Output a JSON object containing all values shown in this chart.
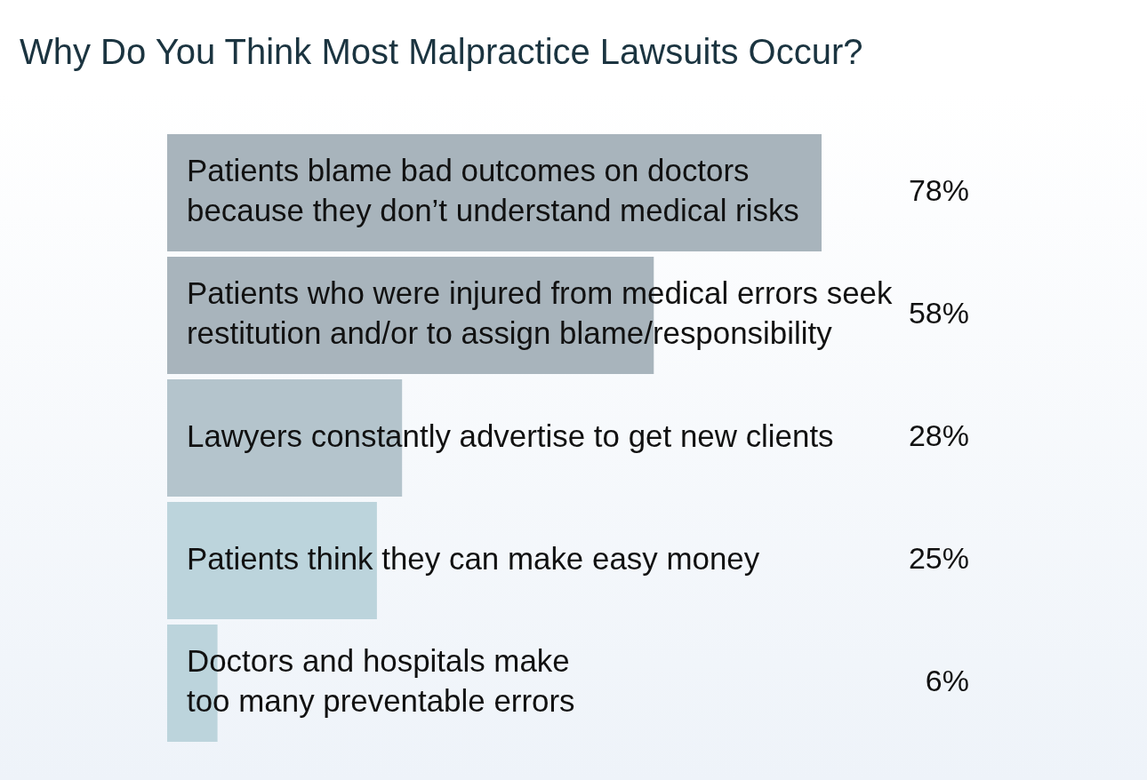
{
  "chart_data": {
    "type": "bar",
    "orientation": "horizontal",
    "title": "Why Do You Think Most Malpractice Lawsuits Occur?",
    "categories": [
      "Patients blame bad outcomes on doctors\nbecause they don’t understand medical risks",
      "Patients who were injured from medical errors seek\nrestitution and/or to assign blame/responsibility",
      "Lawyers constantly advertise to get new clients",
      "Patients think they can make easy money",
      "Doctors and hospitals make\ntoo many preventable errors"
    ],
    "values": [
      78,
      58,
      28,
      25,
      6
    ],
    "colors": [
      "#a8b4bc",
      "#a8b4bc",
      "#b4c4cc",
      "#bcd4dc",
      "#bcd4dc"
    ],
    "value_labels": [
      "78%",
      "58%",
      "28%",
      "25%",
      "6%"
    ]
  }
}
